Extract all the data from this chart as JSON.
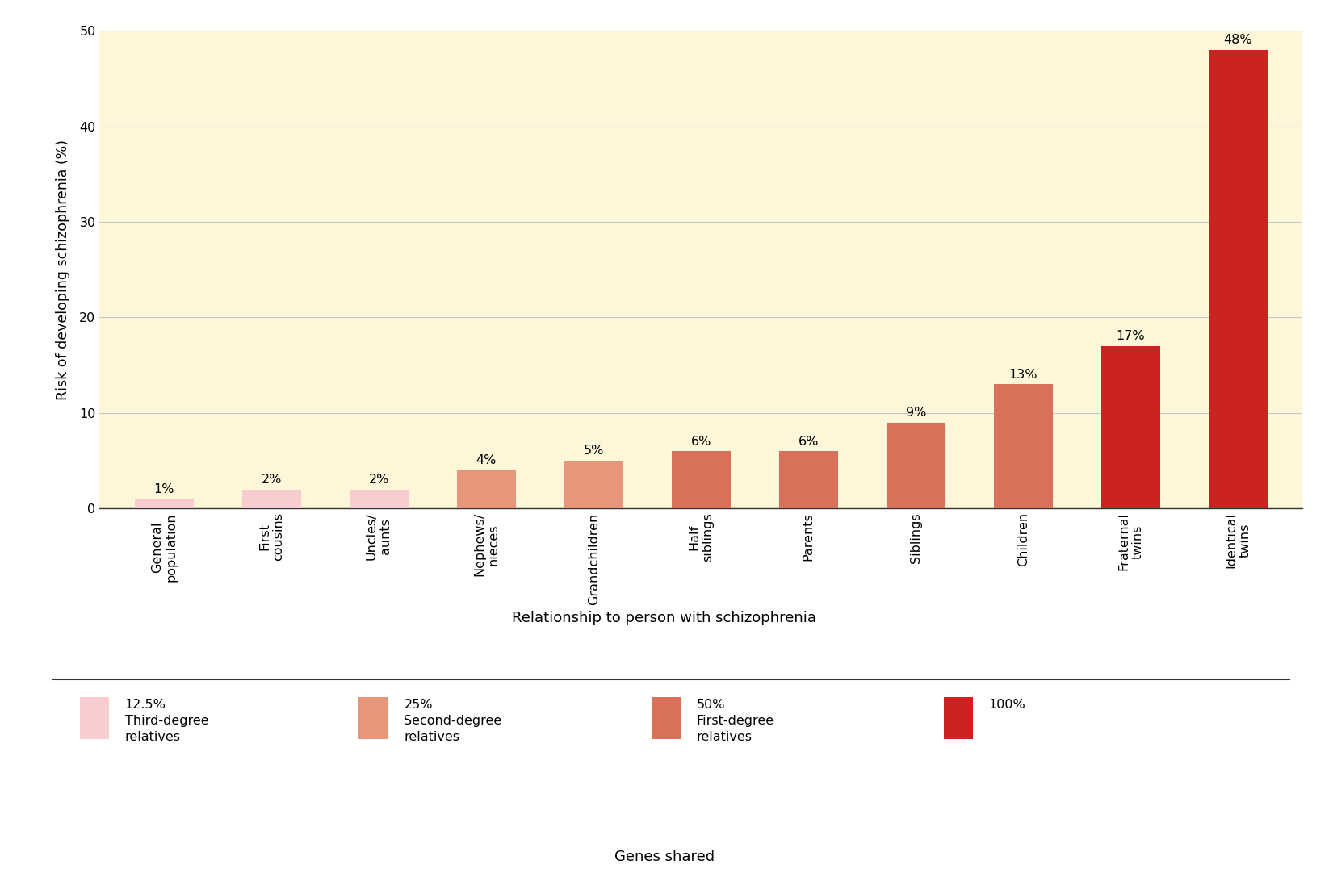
{
  "x_labels_clean": [
    "General\npopulation",
    "First\ncousins",
    "Uncles/\naunts",
    "Nephews/\nnieces",
    "Grandchildren",
    "Half\nsiblings",
    "Parents",
    "Siblings",
    "Children",
    "Fraternal\ntwins",
    "Identical\ntwins"
  ],
  "values": [
    1,
    2,
    2,
    4,
    5,
    6,
    6,
    9,
    13,
    17,
    48
  ],
  "labels": [
    "1%",
    "2%",
    "2%",
    "4%",
    "5%",
    "6%",
    "6%",
    "9%",
    "13%",
    "17%",
    "48%"
  ],
  "bar_colors": [
    "#f9cdd0",
    "#f9cdd0",
    "#f9cdd0",
    "#e8967a",
    "#e8967a",
    "#d9705a",
    "#d9705a",
    "#d9705a",
    "#d9705a",
    "#cc2222",
    "#cc2222"
  ],
  "ylabel": "Risk of developing schizophrenia (%)",
  "xlabel": "Relationship to person with schizophrenia",
  "xlabel2": "Genes shared",
  "ylim": [
    0,
    50
  ],
  "yticks": [
    0,
    10,
    20,
    30,
    40,
    50
  ],
  "plot_background": "#fdf6d8",
  "legend_colors": [
    "#f9cdd0",
    "#e8967a",
    "#d9705a",
    "#cc2222"
  ],
  "legend_labels": [
    "12.5%\nThird-degree\nrelatives",
    "25%\nSecond-degree\nrelatives",
    "50%\nFirst-degree\nrelatives",
    "100%"
  ]
}
